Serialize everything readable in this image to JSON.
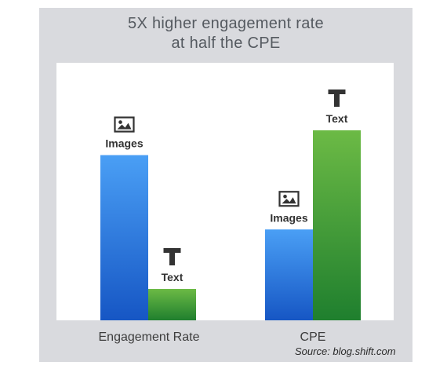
{
  "title": {
    "line1": "5X higher engagement rate",
    "line2": "at half the CPE"
  },
  "source": "Source: blog.shift.com",
  "colors": {
    "images_top": "#4a9ff5",
    "images_bottom": "#1656c4",
    "text_top": "#6cba45",
    "text_bottom": "#1f7f2e",
    "frame": "#d9dade",
    "label": "#333333"
  },
  "chart_data": {
    "type": "bar",
    "title": "5X higher engagement rate at half the CPE",
    "categories": [
      "Engagement Rate",
      "CPE"
    ],
    "series": [
      {
        "name": "Images",
        "icon": "image-icon",
        "values": [
          100,
          55
        ]
      },
      {
        "name": "Text",
        "icon": "text-t-icon",
        "values": [
          19,
          115
        ]
      }
    ],
    "ylim": [
      0,
      135
    ],
    "grid": false,
    "legend": "none"
  }
}
